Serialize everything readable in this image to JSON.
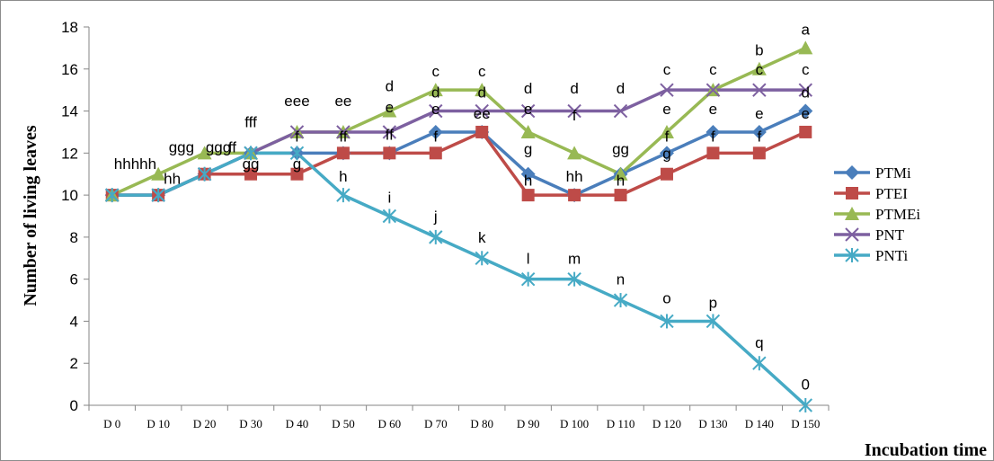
{
  "chart_data": {
    "type": "line",
    "xlabel": "Incubation time",
    "ylabel": "Number of living leaves",
    "ylim": [
      0,
      18
    ],
    "yticks": [
      0,
      2,
      4,
      6,
      8,
      10,
      12,
      14,
      16,
      18
    ],
    "grid": false,
    "legend_position": "right",
    "categories": [
      "D 0",
      "D 10",
      "D 20",
      "D 30",
      "D 40",
      "D 50",
      "D 60",
      "D 70",
      "D 80",
      "D 90",
      "D 100",
      "D 110",
      "D 120",
      "D 130",
      "D 140",
      "D 150"
    ],
    "series": [
      {
        "name": "PTMi",
        "color": "#4a7ebb",
        "marker": "diamond",
        "values": [
          10,
          10,
          11,
          12,
          12,
          12,
          12,
          13,
          13,
          11,
          10,
          11,
          12,
          13,
          13,
          14
        ]
      },
      {
        "name": "PTEI",
        "color": "#be4b48",
        "marker": "square",
        "values": [
          10,
          10,
          11,
          11,
          11,
          12,
          12,
          12,
          13,
          10,
          10,
          10,
          11,
          12,
          12,
          13
        ]
      },
      {
        "name": "PTMEi",
        "color": "#98b954",
        "marker": "triangle",
        "values": [
          10,
          11,
          12,
          12,
          13,
          13,
          14,
          15,
          15,
          13,
          12,
          11,
          13,
          15,
          16,
          17
        ]
      },
      {
        "name": "PNT",
        "color": "#7d60a0",
        "marker": "x",
        "values": [
          10,
          10,
          11,
          12,
          13,
          13,
          13,
          14,
          14,
          14,
          14,
          14,
          15,
          15,
          15,
          15
        ]
      },
      {
        "name": "PNTi",
        "color": "#46aac5",
        "marker": "star",
        "values": [
          10,
          10,
          11,
          12,
          12,
          10,
          9,
          8,
          7,
          6,
          6,
          5,
          4,
          4,
          2,
          0
        ]
      }
    ],
    "annotations": [
      {
        "text": "hhhhh",
        "x": 0.5,
        "y": 11.5
      },
      {
        "text": "hh",
        "x": 1.3,
        "y": 10.8
      },
      {
        "text": "ggg",
        "x": 1.5,
        "y": 12.3
      },
      {
        "text": "ggg",
        "x": 2.3,
        "y": 12.3
      },
      {
        "text": "ff",
        "x": 2.6,
        "y": 12.3
      },
      {
        "text": "fff",
        "x": 3,
        "y": 13.5
      },
      {
        "text": "gg",
        "x": 3,
        "y": 11.5
      },
      {
        "text": "eee",
        "x": 4,
        "y": 14.5
      },
      {
        "text": "f",
        "x": 4,
        "y": 12.8
      },
      {
        "text": "g",
        "x": 4,
        "y": 11.5
      },
      {
        "text": "ee",
        "x": 5,
        "y": 14.5
      },
      {
        "text": "ff",
        "x": 5,
        "y": 12.8
      },
      {
        "text": "h",
        "x": 5,
        "y": 10.9
      },
      {
        "text": "d",
        "x": 6,
        "y": 15.2
      },
      {
        "text": "e",
        "x": 6,
        "y": 14.2
      },
      {
        "text": "ff",
        "x": 6,
        "y": 12.9
      },
      {
        "text": "i",
        "x": 6,
        "y": 9.9
      },
      {
        "text": "c",
        "x": 7,
        "y": 15.9
      },
      {
        "text": "d",
        "x": 7,
        "y": 14.9
      },
      {
        "text": "e",
        "x": 7,
        "y": 14.1
      },
      {
        "text": "f",
        "x": 7,
        "y": 12.8
      },
      {
        "text": "j",
        "x": 7,
        "y": 9.0
      },
      {
        "text": "c",
        "x": 8,
        "y": 15.9
      },
      {
        "text": "d",
        "x": 8,
        "y": 14.9
      },
      {
        "text": "ee",
        "x": 8,
        "y": 13.9
      },
      {
        "text": "k",
        "x": 8,
        "y": 8.0
      },
      {
        "text": "d",
        "x": 9,
        "y": 15.1
      },
      {
        "text": "e",
        "x": 9,
        "y": 14.1
      },
      {
        "text": "g",
        "x": 9,
        "y": 12.2
      },
      {
        "text": "h",
        "x": 9,
        "y": 10.7
      },
      {
        "text": "l",
        "x": 9,
        "y": 7.0
      },
      {
        "text": "d",
        "x": 10,
        "y": 15.1
      },
      {
        "text": "f",
        "x": 10,
        "y": 13.8
      },
      {
        "text": "hh",
        "x": 10,
        "y": 10.9
      },
      {
        "text": "m",
        "x": 10,
        "y": 7.0
      },
      {
        "text": "d",
        "x": 11,
        "y": 15.1
      },
      {
        "text": "gg",
        "x": 11,
        "y": 12.2
      },
      {
        "text": "h",
        "x": 11,
        "y": 10.7
      },
      {
        "text": "n",
        "x": 11,
        "y": 6.0
      },
      {
        "text": "c",
        "x": 12,
        "y": 16.0
      },
      {
        "text": "e",
        "x": 12,
        "y": 14.1
      },
      {
        "text": "f",
        "x": 12,
        "y": 12.8
      },
      {
        "text": "g",
        "x": 12,
        "y": 12.0
      },
      {
        "text": "o",
        "x": 12,
        "y": 5.1
      },
      {
        "text": "c",
        "x": 13,
        "y": 16.0
      },
      {
        "text": "e",
        "x": 13,
        "y": 14.1
      },
      {
        "text": "f",
        "x": 13,
        "y": 12.8
      },
      {
        "text": "p",
        "x": 13,
        "y": 4.9
      },
      {
        "text": "b",
        "x": 14,
        "y": 16.9
      },
      {
        "text": "c",
        "x": 14,
        "y": 16.0
      },
      {
        "text": "e",
        "x": 14,
        "y": 13.9
      },
      {
        "text": "f",
        "x": 14,
        "y": 12.8
      },
      {
        "text": "q",
        "x": 14,
        "y": 3.0
      },
      {
        "text": "a",
        "x": 15,
        "y": 17.9
      },
      {
        "text": "c",
        "x": 15,
        "y": 16.0
      },
      {
        "text": "d",
        "x": 15,
        "y": 14.9
      },
      {
        "text": "e",
        "x": 15,
        "y": 13.9
      },
      {
        "text": "0",
        "x": 15,
        "y": 1.0
      }
    ]
  }
}
